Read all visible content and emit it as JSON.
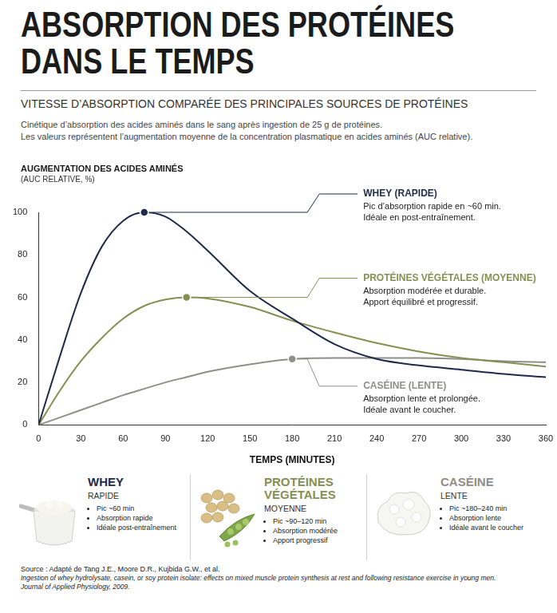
{
  "header": {
    "title": [
      "ABSORPTION DES PROTÉINES",
      "DANS LE TEMPS"
    ],
    "subtitle": "VITESSE D’ABSORPTION COMPARÉE DES PRINCIPALES SOURCES DE PROTÉINES",
    "description": [
      "Cinétique d’absorption des acides aminés dans le sang après ingestion de 25 g de protéines.",
      "Les valeurs représentent l’augmentation moyenne de la concentration plasmatique en acides aminés (AUC relative)."
    ]
  },
  "chart_data": {
    "type": "line",
    "ylabel": "AUGMENTATION DES ACIDES AMINÉS",
    "ylabel_note": "(AUC RELATIVE, %)",
    "xlabel": "TEMPS (MINUTES)",
    "x": [
      0,
      15,
      30,
      45,
      60,
      75,
      90,
      105,
      120,
      150,
      180,
      210,
      240,
      270,
      300,
      330,
      360
    ],
    "series": [
      {
        "name": "WHEY (RAPIDE)",
        "color": "#1f2a4a",
        "values": [
          0,
          32,
          62,
          84,
          96,
          100,
          98,
          91,
          82,
          63,
          50,
          38,
          31,
          28,
          26,
          24,
          22.5
        ],
        "annotation": {
          "x": 75,
          "y": 100,
          "lines": [
            "Pic d’absorption rapide en ~60 min.",
            "Idéale en post-entraînement."
          ]
        }
      },
      {
        "name": "PROTÉINES VÉGÉTALES (MOYENNE)",
        "color": "#858f52",
        "values": [
          0,
          16,
          30,
          41,
          50,
          56,
          59,
          60,
          59.5,
          55.5,
          49,
          43.5,
          38.5,
          34.5,
          31.5,
          29.5,
          27.5
        ],
        "annotation": {
          "x": 105,
          "y": 60,
          "lines": [
            "Absorption modérée et durable.",
            "Apport équilibré et progressif."
          ]
        }
      },
      {
        "name": "CASÉINE (LENTE)",
        "color": "#8e8e8a",
        "values": [
          0,
          3.5,
          7,
          10.5,
          14,
          17,
          20,
          22.5,
          25,
          28.5,
          31,
          31.5,
          31.5,
          31.5,
          31,
          30,
          29.5
        ],
        "annotation": {
          "x": 180,
          "y": 31,
          "lines": [
            "Absorption lente et prolongée.",
            "Idéale avant le coucher."
          ]
        }
      }
    ],
    "xlim": [
      0,
      360
    ],
    "xticks": [
      0,
      30,
      60,
      90,
      120,
      150,
      180,
      210,
      240,
      270,
      300,
      330,
      360
    ],
    "ylim": [
      0,
      100
    ],
    "yticks": [
      0,
      20,
      40,
      60,
      80,
      100
    ],
    "grid": false
  },
  "cards": [
    {
      "title": "WHEY",
      "speed": "RAPIDE",
      "bullets": [
        "Pic ~60 min",
        "Absorption rapide",
        "Idéale post-entraînement"
      ]
    },
    {
      "title": "PROTÉINES VÉGÉTALES",
      "speed": "MOYENNE",
      "bullets": [
        "Pic ~90–120 min",
        "Absorption modérée",
        "Apport progressif"
      ]
    },
    {
      "title": "CASÉINE",
      "speed": "LENTE",
      "bullets": [
        "Pic ~180–240 min",
        "Absorption lente",
        "Idéale avant le coucher"
      ]
    }
  ],
  "source": {
    "reference": "Source : Adapté de Tang J.E., Moore D.R., Kujbida G.W., et al.",
    "article": "Ingestion of whey hydrolysate, casein, or soy protein isolate: effects on mixed muscle protein synthesis at rest and following resistance exercise in young men.",
    "journal": "Journal of Applied Physiology, 2009."
  }
}
